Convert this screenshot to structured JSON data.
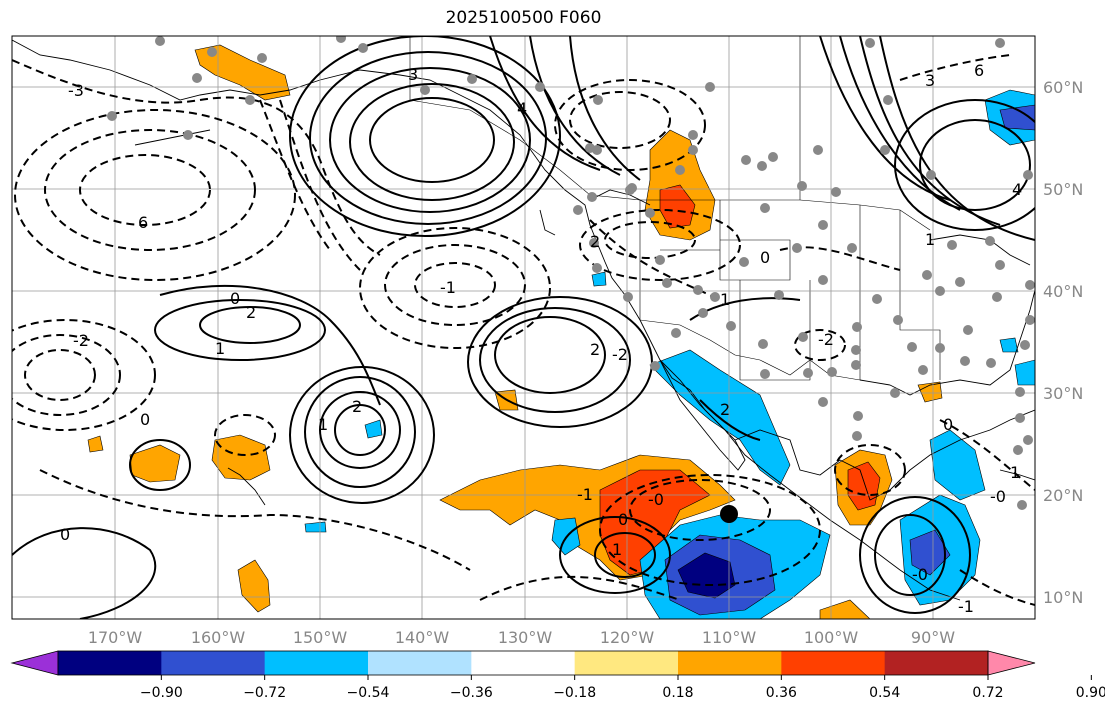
{
  "title": "2025100500 F060",
  "map": {
    "lon_ticks": [
      "170°W",
      "160°W",
      "150°W",
      "140°W",
      "130°W",
      "120°W",
      "110°W",
      "100°W",
      "90°W"
    ],
    "lat_ticks": [
      "60°N",
      "50°N",
      "40°N",
      "30°N",
      "20°N",
      "10°N"
    ],
    "contour_labels": [
      "3",
      "4",
      "6",
      "2",
      "0",
      "-1",
      "1",
      "-2",
      "-3",
      "0",
      "2",
      "1",
      "0",
      "-0",
      "-1",
      "1",
      "2",
      "0",
      "1",
      "-2",
      "1",
      "2",
      "0",
      "-1",
      "0",
      "2",
      "-2",
      "-0",
      "1",
      "-0",
      "4",
      "6",
      "3"
    ]
  },
  "colorbar": {
    "ticks": [
      "−0.90",
      "−0.72",
      "−0.54",
      "−0.36",
      "−0.18",
      "0.18",
      "0.36",
      "0.54",
      "0.72",
      "0.90"
    ],
    "colors": [
      "#9b30d8",
      "#000080",
      "#3050d0",
      "#00bfff",
      "#b0e2ff",
      "#ffffff",
      "#ffe880",
      "#ffa500",
      "#ff4000",
      "#b22222",
      "#ff88aa"
    ]
  }
}
